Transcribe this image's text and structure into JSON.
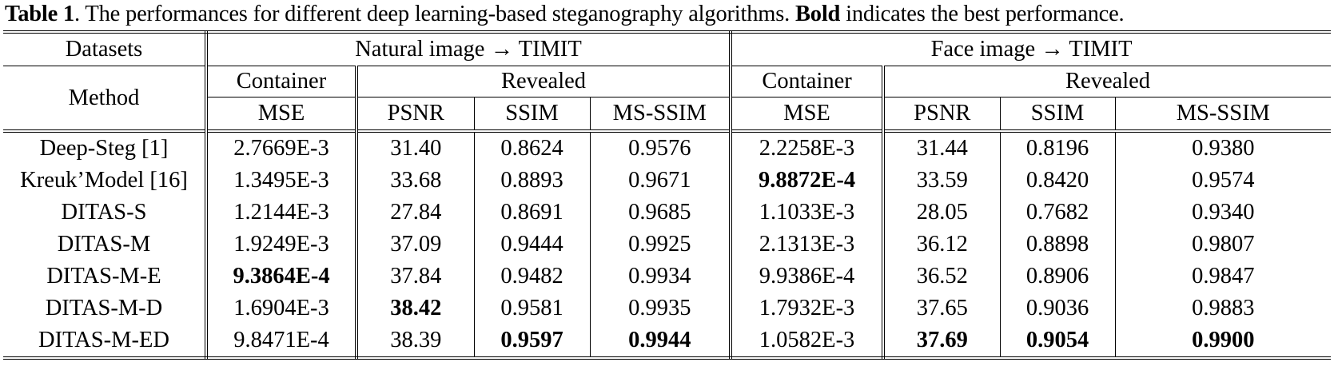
{
  "caption": {
    "label": "Table 1",
    "text_before_bold": ". The performances for different deep learning-based steganography algorithms. ",
    "bold_word": "Bold",
    "text_after_bold": " indicates the best performance."
  },
  "headers": {
    "datasets_label": "Datasets",
    "method_label": "Method",
    "group1": "Natural image → TIMIT",
    "group2": "Face image → TIMIT",
    "container": "Container",
    "revealed": "Revealed",
    "mse": "MSE",
    "psnr": "PSNR",
    "ssim": "SSIM",
    "msssim": "MS-SSIM"
  },
  "rows": [
    {
      "method": "Deep-Steg [1]",
      "values": [
        "2.7669E-3",
        "31.40",
        "0.8624",
        "0.9576",
        "2.2258E-3",
        "31.44",
        "0.8196",
        "0.9380"
      ],
      "bold": []
    },
    {
      "method": "Kreuk’Model [16]",
      "values": [
        "1.3495E-3",
        "33.68",
        "0.8893",
        "0.9671",
        "9.8872E-4",
        "33.59",
        "0.8420",
        "0.9574"
      ],
      "bold": [
        4
      ]
    },
    {
      "method": "DITAS-S",
      "values": [
        "1.2144E-3",
        "27.84",
        "0.8691",
        "0.9685",
        "1.1033E-3",
        "28.05",
        "0.7682",
        "0.9340"
      ],
      "bold": []
    },
    {
      "method": "DITAS-M",
      "values": [
        "1.9249E-3",
        "37.09",
        "0.9444",
        "0.9925",
        "2.1313E-3",
        "36.12",
        "0.8898",
        "0.9807"
      ],
      "bold": []
    },
    {
      "method": "DITAS-M-E",
      "values": [
        "9.3864E-4",
        "37.84",
        "0.9482",
        "0.9934",
        "9.9386E-4",
        "36.52",
        "0.8906",
        "0.9847"
      ],
      "bold": [
        0
      ]
    },
    {
      "method": "DITAS-M-D",
      "values": [
        "1.6904E-3",
        "38.42",
        "0.9581",
        "0.9935",
        "1.7932E-3",
        "37.65",
        "0.9036",
        "0.9883"
      ],
      "bold": [
        1
      ]
    },
    {
      "method": "DITAS-M-ED",
      "values": [
        "9.8471E-4",
        "38.39",
        "0.9597",
        "0.9944",
        "1.0582E-3",
        "37.69",
        "0.9054",
        "0.9900"
      ],
      "bold": [
        2,
        3,
        5,
        6,
        7
      ]
    }
  ]
}
